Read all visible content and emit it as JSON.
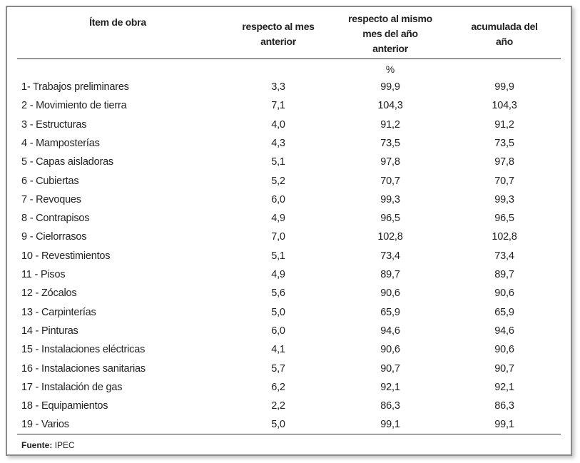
{
  "headers": {
    "item": "Ítem de obra",
    "col1": "respecto al mes anterior",
    "col2": "respecto al mismo mes del año anterior",
    "col3": "acumulada del año"
  },
  "unit": "%",
  "rows": [
    {
      "item": "1- Trabajos  preliminares",
      "mes": "3,3",
      "anio": "99,9",
      "acum": "99,9"
    },
    {
      "item": "2 - Movimiento de tierra",
      "mes": "7,1",
      "anio": "104,3",
      "acum": "104,3"
    },
    {
      "item": "3 - Estructuras",
      "mes": "4,0",
      "anio": "91,2",
      "acum": "91,2"
    },
    {
      "item": "4 - Mamposterías",
      "mes": "4,3",
      "anio": "73,5",
      "acum": "73,5"
    },
    {
      "item": "5 - Capas aisladoras",
      "mes": "5,1",
      "anio": "97,8",
      "acum": "97,8"
    },
    {
      "item": "6 - Cubiertas",
      "mes": "5,2",
      "anio": "70,7",
      "acum": "70,7"
    },
    {
      "item": "7 - Revoques",
      "mes": "6,0",
      "anio": "99,3",
      "acum": "99,3"
    },
    {
      "item": "8 - Contrapisos",
      "mes": "4,9",
      "anio": "96,5",
      "acum": "96,5"
    },
    {
      "item": "9 - Cielorrasos",
      "mes": "7,0",
      "anio": "102,8",
      "acum": "102,8"
    },
    {
      "item": "10 - Revestimientos",
      "mes": "5,1",
      "anio": "73,4",
      "acum": "73,4"
    },
    {
      "item": "11 - Pisos",
      "mes": "4,9",
      "anio": "89,7",
      "acum": "89,7"
    },
    {
      "item": "12 - Zócalos",
      "mes": "5,6",
      "anio": "90,6",
      "acum": "90,6"
    },
    {
      "item": "13 - Carpinterías",
      "mes": "5,0",
      "anio": "65,9",
      "acum": "65,9"
    },
    {
      "item": "14 - Pinturas",
      "mes": "6,0",
      "anio": "94,6",
      "acum": "94,6"
    },
    {
      "item": "15 - Instalaciones eléctricas",
      "mes": "4,1",
      "anio": "90,6",
      "acum": "90,6"
    },
    {
      "item": "16 - Instalaciones sanitarias",
      "mes": "5,7",
      "anio": "90,7",
      "acum": "90,7"
    },
    {
      "item": "17 - Instalación de gas",
      "mes": "6,2",
      "anio": "92,1",
      "acum": "92,1"
    },
    {
      "item": "18 - Equipamientos",
      "mes": "2,2",
      "anio": "86,3",
      "acum": "86,3"
    },
    {
      "item": "19 - Varios",
      "mes": "5,0",
      "anio": "99,1",
      "acum": "99,1"
    }
  ],
  "source": {
    "label": "Fuente:",
    "value": "IPEC"
  }
}
